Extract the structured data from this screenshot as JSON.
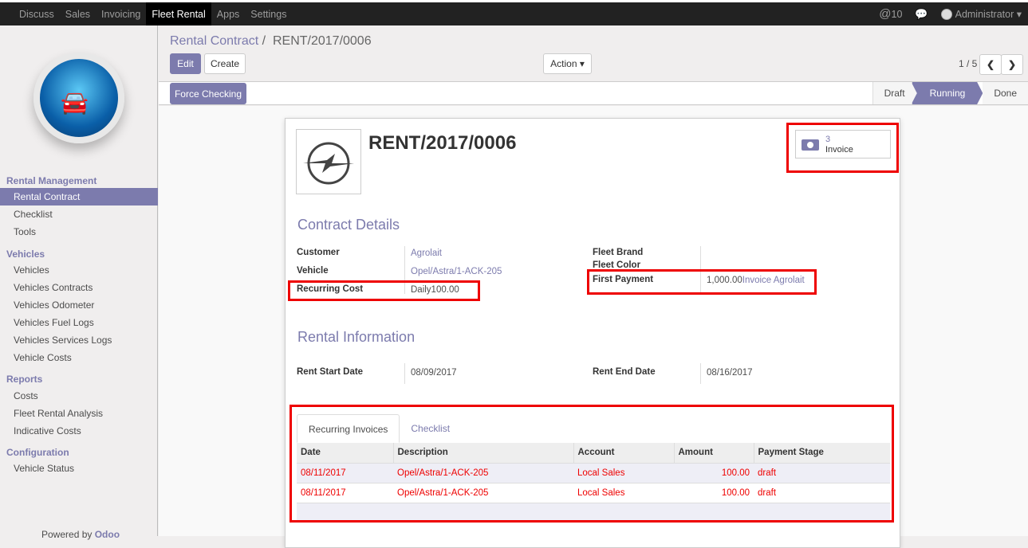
{
  "topbar": {
    "menu": [
      "Discuss",
      "Sales",
      "Invoicing",
      "Fleet Rental",
      "Apps",
      "Settings"
    ],
    "active": "Fleet Rental",
    "mentions": "10",
    "user": "Administrator"
  },
  "sidebar": {
    "sections": [
      {
        "title": "Rental Management",
        "items": [
          "Rental Contract",
          "Checklist",
          "Tools"
        ]
      },
      {
        "title": "Vehicles",
        "items": [
          "Vehicles",
          "Vehicles Contracts",
          "Vehicles Odometer",
          "Vehicles Fuel Logs",
          "Vehicles Services Logs",
          "Vehicle Costs"
        ]
      },
      {
        "title": "Reports",
        "items": [
          "Costs",
          "Fleet Rental Analysis",
          "Indicative Costs"
        ]
      },
      {
        "title": "Configuration",
        "items": [
          "Vehicle Status"
        ]
      }
    ],
    "active": "Rental Contract",
    "powered": "Powered by ",
    "brand": "Odoo"
  },
  "breadcrumb": {
    "parent": "Rental Contract",
    "sep": "/",
    "current": "RENT/2017/0006"
  },
  "buttons": {
    "edit": "Edit",
    "create": "Create",
    "action": "Action ▾",
    "force": "Force Checking"
  },
  "pager": {
    "text": "1 / 5"
  },
  "stages": [
    "Draft",
    "Running",
    "Done"
  ],
  "current_stage": "Running",
  "record": {
    "title": "RENT/2017/0006",
    "invoice_count": "3",
    "invoice_label": "Invoice",
    "contract_details": "Contract Details",
    "rental_information": "Rental Information",
    "fields": {
      "customer_label": "Customer",
      "customer": "Agrolait",
      "vehicle_label": "Vehicle",
      "vehicle": "Opel/Astra/1-ACK-205",
      "recurring_label": "Recurring Cost",
      "recurring": "Daily100.00",
      "brand_label": "Fleet Brand",
      "color_label": "Fleet Color",
      "first_payment_label": "First Payment",
      "first_payment": "1,000.00",
      "first_payment_invoice": "Invoice Agrolait",
      "start_label": "Rent Start Date",
      "start": "08/09/2017",
      "end_label": "Rent End Date",
      "end": "08/16/2017"
    }
  },
  "tabs": [
    "Recurring Invoices",
    "Checklist"
  ],
  "table": {
    "headers": [
      "Date",
      "Description",
      "Account",
      "Amount",
      "Payment Stage"
    ],
    "rows": [
      [
        "08/11/2017",
        "Opel/Astra/1-ACK-205",
        "Local Sales",
        "100.00",
        "draft"
      ],
      [
        "08/11/2017",
        "Opel/Astra/1-ACK-205",
        "Local Sales",
        "100.00",
        "draft"
      ]
    ]
  },
  "colors": {
    "accent": "#7c7bad",
    "annotation": "#e00000",
    "topbar": "#222222"
  }
}
